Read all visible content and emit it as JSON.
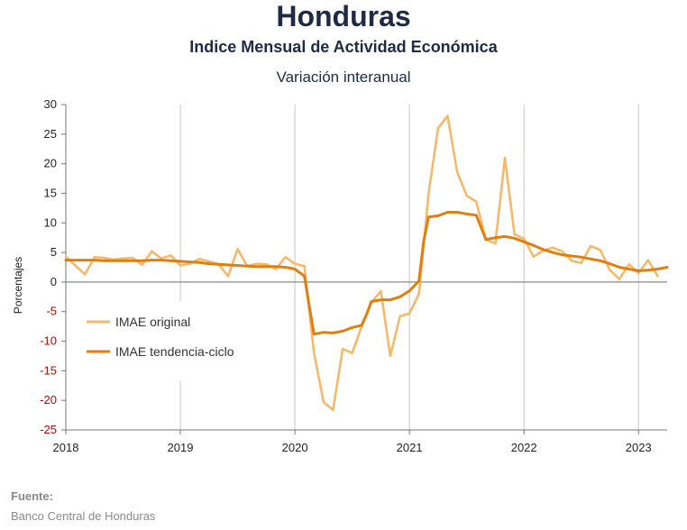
{
  "header": {
    "title": "Honduras",
    "subtitle": "Indice Mensual de  Actividad Económica",
    "subsubtitle": "Variación interanual"
  },
  "source": {
    "label": "Fuente:",
    "text": "Banco Central de Honduras"
  },
  "chart_data": {
    "type": "line",
    "ylabel": "Porcentajes",
    "ylim": [
      -25,
      30
    ],
    "yticks": [
      30,
      25,
      20,
      15,
      10,
      5,
      0,
      -5,
      -10,
      -15,
      -20,
      -25
    ],
    "ytick_labels": [
      "30",
      "25",
      "20",
      "15",
      "10",
      "5",
      "0",
      "-5",
      "-10",
      "-15",
      "-20",
      "-25"
    ],
    "xlim": [
      2018.0,
      2023.25
    ],
    "xticks": [
      2018,
      2019,
      2020,
      2021,
      2022,
      2023
    ],
    "xtick_labels": [
      "2018",
      "2019",
      "2020",
      "2021",
      "2022",
      "2023"
    ],
    "grid": "vertical",
    "legend_position": "lower-left",
    "series": [
      {
        "name": "IMAE original",
        "color": "#f5b96a",
        "x": [
          2018.0,
          2018.083,
          2018.167,
          2018.25,
          2018.333,
          2018.417,
          2018.5,
          2018.583,
          2018.667,
          2018.75,
          2018.833,
          2018.917,
          2019.0,
          2019.083,
          2019.167,
          2019.25,
          2019.333,
          2019.417,
          2019.5,
          2019.583,
          2019.667,
          2019.75,
          2019.833,
          2019.917,
          2020.0,
          2020.083,
          2020.167,
          2020.25,
          2020.333,
          2020.417,
          2020.5,
          2020.583,
          2020.667,
          2020.75,
          2020.833,
          2020.917,
          2021.0,
          2021.083,
          2021.167,
          2021.25,
          2021.333,
          2021.417,
          2021.5,
          2021.583,
          2021.667,
          2021.75,
          2021.833,
          2021.917,
          2022.0,
          2022.083,
          2022.167,
          2022.25,
          2022.333,
          2022.417,
          2022.5,
          2022.583,
          2022.667,
          2022.75,
          2022.833,
          2022.917,
          2023.0,
          2023.083,
          2023.167,
          2023.25
        ],
        "values": [
          4.3,
          2.8,
          1.3,
          4.2,
          4.1,
          3.8,
          4.0,
          4.1,
          2.9,
          5.2,
          4.0,
          4.5,
          2.8,
          3.1,
          3.9,
          3.5,
          3.0,
          1.0,
          5.6,
          2.7,
          3.1,
          3.0,
          2.2,
          4.2,
          3.1,
          2.7,
          -12.0,
          -20.3,
          -21.6,
          -11.3,
          -12.0,
          -7.5,
          -3.5,
          -1.5,
          -12.5,
          -5.8,
          -5.3,
          -2.0,
          15.0,
          26.0,
          28.1,
          18.6,
          14.6,
          13.6,
          7.2,
          6.5,
          21.0,
          8.1,
          7.3,
          4.3,
          5.3,
          5.8,
          5.2,
          3.6,
          3.2,
          6.1,
          5.4,
          2.0,
          0.5,
          3.0,
          1.5,
          3.7,
          1.0,
          null
        ]
      },
      {
        "name": "IMAE tendencia-ciclo",
        "color": "#e07f10",
        "x": [
          2018.0,
          2018.083,
          2018.167,
          2018.25,
          2018.333,
          2018.417,
          2018.5,
          2018.583,
          2018.667,
          2018.75,
          2018.833,
          2018.917,
          2019.0,
          2019.083,
          2019.167,
          2019.25,
          2019.333,
          2019.417,
          2019.5,
          2019.583,
          2019.667,
          2019.75,
          2019.833,
          2019.917,
          2020.0,
          2020.083,
          2020.125,
          2020.167,
          2020.25,
          2020.333,
          2020.417,
          2020.5,
          2020.583,
          2020.625,
          2020.667,
          2020.75,
          2020.833,
          2020.917,
          2021.0,
          2021.083,
          2021.125,
          2021.167,
          2021.25,
          2021.333,
          2021.417,
          2021.5,
          2021.583,
          2021.667,
          2021.75,
          2021.833,
          2021.917,
          2022.0,
          2022.083,
          2022.167,
          2022.25,
          2022.333,
          2022.417,
          2022.5,
          2022.583,
          2022.667,
          2022.75,
          2022.833,
          2022.917,
          2023.0,
          2023.083,
          2023.167,
          2023.25
        ],
        "values": [
          3.7,
          3.7,
          3.7,
          3.7,
          3.6,
          3.6,
          3.6,
          3.6,
          3.6,
          3.7,
          3.7,
          3.6,
          3.5,
          3.4,
          3.3,
          3.1,
          3.0,
          2.9,
          2.8,
          2.7,
          2.6,
          2.6,
          2.6,
          2.5,
          2.2,
          1.0,
          -4.0,
          -8.8,
          -8.5,
          -8.6,
          -8.3,
          -7.7,
          -7.3,
          -5.5,
          -3.3,
          -3.0,
          -3.0,
          -2.5,
          -1.5,
          0.2,
          7.0,
          11.0,
          11.2,
          11.8,
          11.8,
          11.5,
          11.3,
          7.2,
          7.5,
          7.7,
          7.4,
          6.8,
          6.2,
          5.5,
          5.0,
          4.6,
          4.4,
          4.2,
          3.9,
          3.6,
          3.1,
          2.5,
          2.2,
          1.9,
          2.0,
          2.2,
          2.5
        ]
      }
    ]
  }
}
